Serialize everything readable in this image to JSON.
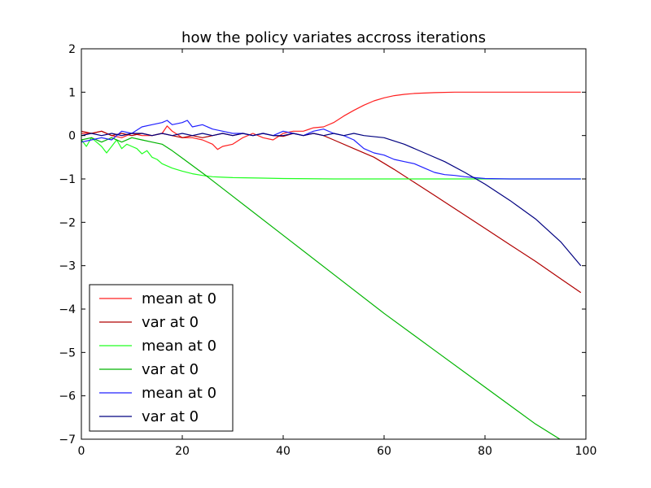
{
  "chart_data": {
    "type": "line",
    "title": "how the policy variates accross iterations",
    "xlabel": "",
    "ylabel": "",
    "xlim": [
      0,
      100
    ],
    "ylim": [
      -7,
      2
    ],
    "xticks": [
      0,
      20,
      40,
      60,
      80,
      100
    ],
    "yticks": [
      -7,
      -6,
      -5,
      -4,
      -3,
      -2,
      -1,
      0,
      1,
      2
    ],
    "grid": false,
    "legend_position": "lower-left",
    "series": [
      {
        "name": "mean at 0",
        "color": "#ff2020",
        "x": [
          0,
          2,
          4,
          6,
          8,
          10,
          12,
          14,
          16,
          17,
          18,
          20,
          22,
          24,
          26,
          27,
          28,
          30,
          32,
          34,
          36,
          38,
          40,
          42,
          44,
          46,
          48,
          50,
          52,
          54,
          56,
          58,
          60,
          62,
          64,
          66,
          68,
          70,
          74,
          80,
          90,
          99
        ],
        "y": [
          0.05,
          0.05,
          0.1,
          0.0,
          -0.05,
          0.05,
          0.0,
          0.0,
          0.05,
          0.22,
          0.1,
          -0.05,
          -0.05,
          -0.1,
          -0.2,
          -0.32,
          -0.25,
          -0.2,
          -0.05,
          0.05,
          -0.05,
          -0.1,
          0.05,
          0.1,
          0.1,
          0.18,
          0.2,
          0.3,
          0.45,
          0.58,
          0.7,
          0.8,
          0.87,
          0.92,
          0.95,
          0.97,
          0.98,
          0.99,
          1.0,
          1.0,
          1.0,
          1.0
        ]
      },
      {
        "name": "var at 0",
        "color": "#b00000",
        "x": [
          0,
          2,
          4,
          6,
          8,
          10,
          12,
          14,
          16,
          18,
          20,
          22,
          24,
          26,
          28,
          30,
          32,
          34,
          36,
          38,
          40,
          42,
          44,
          46,
          48,
          50,
          54,
          58,
          62,
          66,
          70,
          75,
          80,
          85,
          90,
          95,
          99
        ],
        "y": [
          0.1,
          0.05,
          0.1,
          0.0,
          0.05,
          0.0,
          0.05,
          0.0,
          0.05,
          0.0,
          -0.05,
          0.0,
          -0.05,
          0.0,
          0.05,
          0.0,
          0.05,
          0.0,
          0.05,
          0.0,
          -0.02,
          0.05,
          0.0,
          0.05,
          0.0,
          -0.1,
          -0.3,
          -0.5,
          -0.78,
          -1.08,
          -1.38,
          -1.76,
          -2.14,
          -2.52,
          -2.9,
          -3.3,
          -3.62
        ]
      },
      {
        "name": "mean at 0",
        "color": "#20ff20",
        "x": [
          0,
          1,
          2,
          3,
          4,
          5,
          6,
          7,
          8,
          9,
          10,
          11,
          12,
          13,
          14,
          15,
          16,
          18,
          20,
          22,
          24,
          26,
          28,
          30,
          35,
          40,
          50,
          60,
          70,
          80,
          99
        ],
        "y": [
          -0.1,
          -0.25,
          -0.05,
          -0.15,
          -0.25,
          -0.4,
          -0.25,
          -0.1,
          -0.3,
          -0.2,
          -0.25,
          -0.3,
          -0.42,
          -0.35,
          -0.5,
          -0.55,
          -0.65,
          -0.75,
          -0.82,
          -0.88,
          -0.92,
          -0.95,
          -0.96,
          -0.97,
          -0.98,
          -0.99,
          -1.0,
          -1.0,
          -1.0,
          -1.0,
          -1.0
        ]
      },
      {
        "name": "var at 0",
        "color": "#00b400",
        "x": [
          0,
          2,
          4,
          6,
          8,
          10,
          12,
          14,
          16,
          18,
          20,
          25,
          30,
          40,
          50,
          60,
          70,
          80,
          90,
          99
        ],
        "y": [
          -0.1,
          -0.05,
          -0.15,
          -0.05,
          -0.15,
          -0.05,
          -0.1,
          -0.15,
          -0.2,
          -0.35,
          -0.52,
          -0.95,
          -1.4,
          -2.3,
          -3.2,
          -4.1,
          -4.95,
          -5.8,
          -6.65,
          -7.3
        ]
      },
      {
        "name": "mean at 0",
        "color": "#2020ff",
        "x": [
          0,
          2,
          4,
          6,
          8,
          10,
          12,
          14,
          16,
          17,
          18,
          20,
          21,
          22,
          24,
          26,
          28,
          30,
          32,
          34,
          36,
          38,
          40,
          42,
          44,
          46,
          48,
          50,
          52,
          54,
          56,
          58,
          60,
          62,
          64,
          66,
          68,
          70,
          72,
          74,
          76,
          78,
          80,
          85,
          90,
          99
        ],
        "y": [
          -0.15,
          -0.1,
          -0.05,
          -0.1,
          0.1,
          0.05,
          0.2,
          0.25,
          0.3,
          0.35,
          0.25,
          0.3,
          0.35,
          0.2,
          0.25,
          0.15,
          0.1,
          0.05,
          0.05,
          0.0,
          0.05,
          0.0,
          0.1,
          0.05,
          0.0,
          0.1,
          0.15,
          0.05,
          0.0,
          -0.1,
          -0.3,
          -0.4,
          -0.45,
          -0.55,
          -0.6,
          -0.65,
          -0.75,
          -0.85,
          -0.9,
          -0.92,
          -0.95,
          -0.97,
          -0.99,
          -1.0,
          -1.0,
          -1.0
        ]
      },
      {
        "name": "var at 0",
        "color": "#000080",
        "x": [
          0,
          2,
          4,
          6,
          8,
          10,
          12,
          14,
          16,
          18,
          20,
          22,
          24,
          26,
          28,
          30,
          32,
          34,
          36,
          38,
          40,
          42,
          44,
          46,
          48,
          50,
          52,
          54,
          56,
          60,
          64,
          68,
          72,
          76,
          80,
          85,
          90,
          95,
          99
        ],
        "y": [
          0.0,
          0.05,
          0.0,
          0.05,
          0.0,
          0.05,
          0.05,
          0.0,
          0.05,
          0.0,
          0.05,
          0.0,
          0.05,
          0.0,
          0.05,
          0.0,
          0.05,
          0.0,
          0.05,
          0.0,
          0.0,
          0.05,
          0.0,
          0.05,
          0.0,
          0.05,
          0.0,
          0.05,
          0.0,
          -0.05,
          -0.2,
          -0.4,
          -0.6,
          -0.85,
          -1.12,
          -1.5,
          -1.92,
          -2.45,
          -3.0
        ]
      }
    ]
  }
}
